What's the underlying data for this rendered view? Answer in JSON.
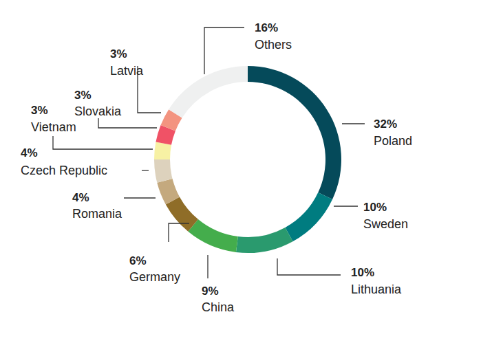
{
  "chart_data": {
    "type": "donut",
    "categories": [
      "Poland",
      "Sweden",
      "Lithuania",
      "China",
      "Germany",
      "Romania",
      "Czech Republic",
      "Vietnam",
      "Slovakia",
      "Latvia",
      "Others"
    ],
    "values": [
      32,
      10,
      10,
      9,
      6,
      4,
      4,
      3,
      3,
      3,
      16
    ],
    "value_labels": [
      "32%",
      "10%",
      "10%",
      "9%",
      "6%",
      "4%",
      "4%",
      "3%",
      "3%",
      "3%",
      "16%"
    ],
    "colors": [
      "#054a5a",
      "#007c80",
      "#2a9a6e",
      "#44ad4c",
      "#8f6d28",
      "#c4a97e",
      "#ddd2bd",
      "#f7f1a4",
      "#f05266",
      "#f39480",
      "#eff0f0"
    ],
    "data_labels": true
  }
}
